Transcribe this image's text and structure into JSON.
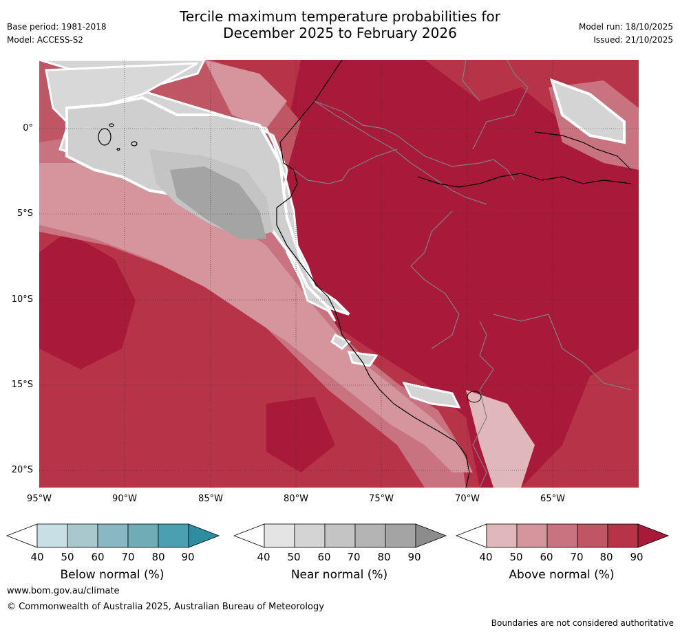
{
  "header": {
    "title_line1": "Tercile maximum temperature probabilities for",
    "title_line2": "December 2025 to February 2026",
    "base_period": "Base period: 1981-2018",
    "model": "Model: ACCESS-S2",
    "model_run": "Model run: 18/10/2025",
    "issued": "Issued: 21/10/2025"
  },
  "map": {
    "lat_ticks": [
      "0°",
      "5°S",
      "10°S",
      "15°S",
      "20°S"
    ],
    "lon_ticks": [
      "95°W",
      "90°W",
      "85°W",
      "80°W",
      "75°W",
      "70°W",
      "65°W"
    ],
    "extent": {
      "lon_min": -95,
      "lon_max": -60,
      "lat_min": -21,
      "lat_max": 4
    }
  },
  "legends": [
    {
      "name": "below",
      "label": "Below normal (%)",
      "ticks": [
        "40",
        "50",
        "60",
        "70",
        "80",
        "90"
      ],
      "colors": [
        "#c8e0e5",
        "#a8c8cd",
        "#8ab8c2",
        "#6eacb6",
        "#4aa0b0",
        "#2e8ea0"
      ]
    },
    {
      "name": "near",
      "label": "Near normal (%)",
      "ticks": [
        "40",
        "50",
        "60",
        "70",
        "80",
        "90"
      ],
      "colors": [
        "#e4e4e4",
        "#d4d4d4",
        "#c4c4c4",
        "#b4b4b4",
        "#a4a4a4",
        "#8c8c8c"
      ]
    },
    {
      "name": "above",
      "label": "Above normal (%)",
      "ticks": [
        "40",
        "50",
        "60",
        "70",
        "80",
        "90"
      ],
      "colors": [
        "#e0b8bc",
        "#d4959c",
        "#c97380",
        "#c05664",
        "#b63348",
        "#a8193a"
      ]
    }
  ],
  "footer": {
    "website": "www.bom.gov.au/climate",
    "copyright": "© Commonwealth of Australia 2025, Australian Bureau of Meteorology",
    "disclaimer": "Boundaries are not considered authoritative"
  }
}
